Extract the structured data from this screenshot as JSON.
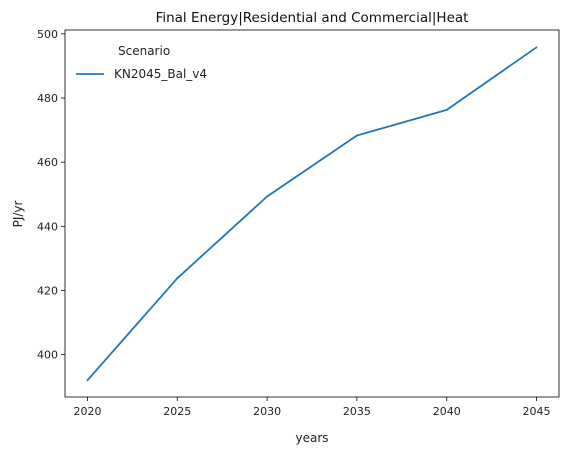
{
  "chart_data": {
    "type": "line",
    "title": "Final Energy|Residential and Commercial|Heat",
    "xlabel": "years",
    "ylabel": "PJ/yr",
    "x": [
      2020,
      2025,
      2030,
      2035,
      2040,
      2045
    ],
    "xticks": [
      "2020",
      "2025",
      "2030",
      "2035",
      "2040",
      "2045"
    ],
    "yticks": [
      "400",
      "420",
      "440",
      "460",
      "480",
      "500"
    ],
    "xlim": [
      2018.75,
      2046.25
    ],
    "ylim": [
      386.8,
      501.2
    ],
    "grid": false,
    "legend": {
      "title": "Scenario",
      "placement": "top-left"
    },
    "series": [
      {
        "name": "KN2045_Bal_v4",
        "color": "#1f77b4",
        "values": [
          392,
          423.8,
          449.3,
          468.3,
          476.3,
          495.8
        ]
      }
    ]
  }
}
